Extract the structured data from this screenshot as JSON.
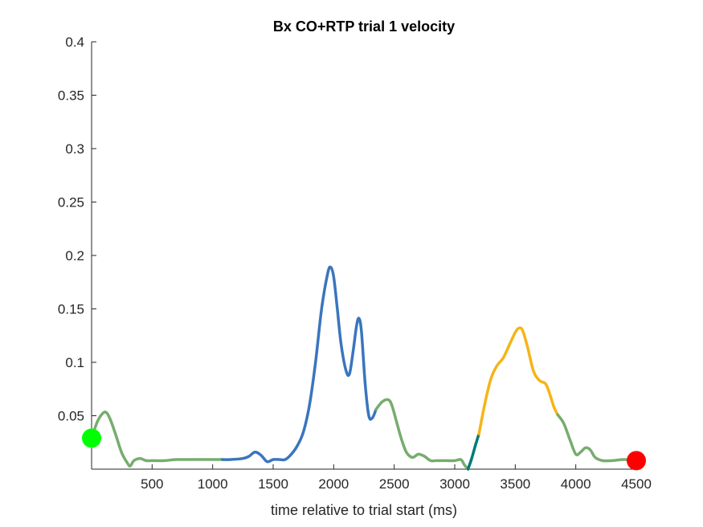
{
  "chart_data": {
    "type": "line",
    "title": "Bx  CO+RTP trial 1 velocity",
    "xlabel": "time relative to trial start (ms)",
    "ylabel": "",
    "xlim": [
      0,
      4500
    ],
    "ylim": [
      0,
      0.4
    ],
    "xticks": [
      500,
      1000,
      1500,
      2000,
      2500,
      3000,
      3500,
      4000,
      4500
    ],
    "xtick_labels": [
      "500",
      "1000",
      "1500",
      "2000",
      "2500",
      "3000",
      "3500",
      "4000",
      "4500"
    ],
    "yticks": [
      0.05,
      0.1,
      0.15,
      0.2,
      0.25,
      0.3,
      0.35,
      0.4
    ],
    "ytick_labels": [
      "0.05",
      "0.1",
      "0.15",
      "0.2",
      "0.25",
      "0.3",
      "0.35",
      "0.4"
    ],
    "grid": false,
    "series": [
      {
        "color": "#77AC6E",
        "x": [
          0,
          50,
          100,
          130,
          160,
          200,
          250,
          300,
          320,
          350,
          400,
          450,
          500,
          600,
          700,
          800,
          900,
          1000,
          1080
        ],
        "y": [
          0.029,
          0.045,
          0.053,
          0.052,
          0.045,
          0.032,
          0.015,
          0.005,
          0.003,
          0.008,
          0.01,
          0.008,
          0.008,
          0.008,
          0.009,
          0.009,
          0.009,
          0.009,
          0.009
        ]
      },
      {
        "color": "#3A75BE",
        "x": [
          1080,
          1150,
          1250,
          1300,
          1350,
          1400,
          1450,
          1500,
          1550,
          1600,
          1650,
          1700,
          1750,
          1800,
          1850,
          1900,
          1950,
          1975,
          2000,
          2030,
          2060,
          2100,
          2130,
          2160,
          2190,
          2210,
          2230,
          2260,
          2290,
          2320,
          2350
        ],
        "y": [
          0.009,
          0.009,
          0.01,
          0.012,
          0.016,
          0.013,
          0.007,
          0.009,
          0.009,
          0.009,
          0.014,
          0.022,
          0.035,
          0.06,
          0.1,
          0.15,
          0.183,
          0.189,
          0.18,
          0.15,
          0.118,
          0.093,
          0.089,
          0.11,
          0.135,
          0.141,
          0.128,
          0.08,
          0.05,
          0.048,
          0.056
        ]
      },
      {
        "color": "#77AC6E",
        "x": [
          2350,
          2400,
          2450,
          2480,
          2520,
          2560,
          2600,
          2650,
          2700,
          2750,
          2800,
          2850,
          2900,
          3000,
          3050,
          3080,
          3110
        ],
        "y": [
          0.056,
          0.063,
          0.065,
          0.06,
          0.044,
          0.028,
          0.016,
          0.011,
          0.014,
          0.012,
          0.008,
          0.008,
          0.008,
          0.008,
          0.009,
          0.004,
          0.0
        ]
      },
      {
        "color": "#007A78",
        "x": [
          3110,
          3140,
          3170,
          3200
        ],
        "y": [
          0.0,
          0.01,
          0.022,
          0.033
        ]
      },
      {
        "color": "#F6B418",
        "x": [
          3200,
          3250,
          3300,
          3350,
          3400,
          3450,
          3500,
          3530,
          3560,
          3600,
          3650,
          3700,
          3750,
          3780,
          3820,
          3850
        ],
        "y": [
          0.033,
          0.062,
          0.085,
          0.097,
          0.104,
          0.116,
          0.128,
          0.132,
          0.13,
          0.115,
          0.092,
          0.083,
          0.08,
          0.072,
          0.058,
          0.051
        ]
      },
      {
        "color": "#77AC6E",
        "x": [
          3850,
          3900,
          3950,
          4000,
          4040,
          4080,
          4120,
          4160,
          4220,
          4300,
          4400,
          4500
        ],
        "y": [
          0.051,
          0.043,
          0.028,
          0.014,
          0.016,
          0.02,
          0.018,
          0.011,
          0.008,
          0.008,
          0.009,
          0.008
        ]
      }
    ],
    "markers": [
      {
        "x": 0,
        "y": 0.029,
        "color": "#00FF00"
      },
      {
        "x": 4500,
        "y": 0.008,
        "color": "#FF0000"
      }
    ]
  }
}
